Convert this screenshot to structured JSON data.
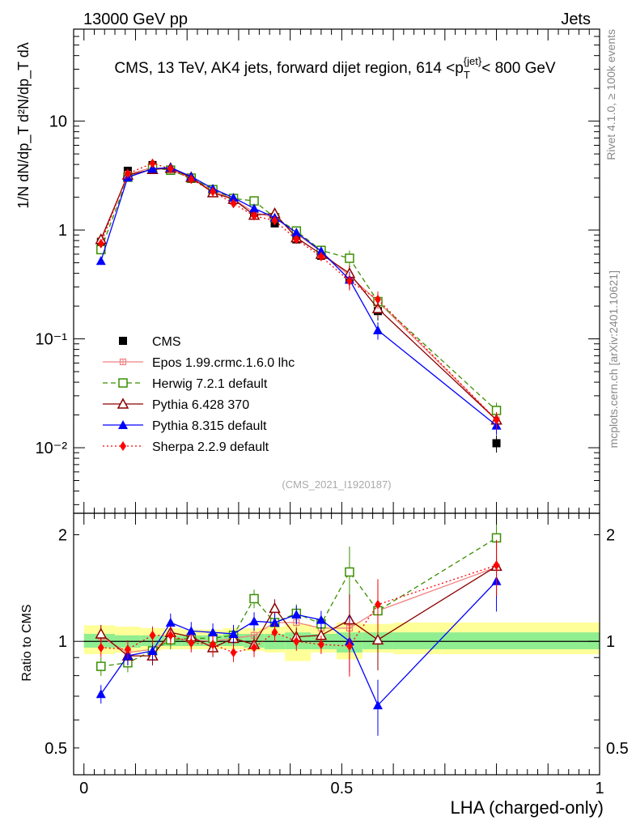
{
  "header": {
    "left": "13000 GeV pp",
    "right": "Jets"
  },
  "side_labels": {
    "rivet": "Rivet 4.1.0, ≥ 100k events",
    "mcplots": "mcplots.cern.ch [arXiv:2401.10621]"
  },
  "colors": {
    "cms": "#000000",
    "epos": "#f08080",
    "herwig": "#3a8f00",
    "pythia6": "#8b0000",
    "pythia8": "#0000ff",
    "sherpa": "#ff0000",
    "band_stat": "#90ee90",
    "band_total": "#ffff99"
  },
  "chart_data": [
    {
      "type": "line",
      "title": "CMS, 13 TeV, AK4 jets, forward dijet region, 614 <p_T^{jet}< 800 GeV",
      "ylabel": "1/N dN/dp_T d²N/dp_T dλ",
      "yscale": "log",
      "ylim": [
        0.0025,
        70
      ],
      "xlim": [
        -0.02,
        1.0
      ],
      "yticks": [
        {
          "value": 0.01,
          "label": "10⁻²"
        },
        {
          "value": 0.1,
          "label": "10⁻¹"
        },
        {
          "value": 1,
          "label": "1"
        },
        {
          "value": 10,
          "label": "10"
        }
      ],
      "watermark": "(CMS_2021_I1920187)",
      "legend_position": "left-bottom",
      "x": [
        0.033,
        0.085,
        0.133,
        0.168,
        0.208,
        0.25,
        0.29,
        0.33,
        0.37,
        0.412,
        0.46,
        0.515,
        0.57,
        0.8
      ],
      "series": [
        {
          "name": "CMS",
          "key": "cms",
          "marker": "square-filled",
          "line": "none",
          "values": [
            0.78,
            3.5,
            3.95,
            3.5,
            2.95,
            2.3,
            1.88,
            1.4,
            1.15,
            0.82,
            0.58,
            0.35,
            0.18,
            0.011
          ]
        },
        {
          "name": "Epos 1.99.crmc.1.6.0 lhc",
          "key": "epos",
          "marker": "plus-square",
          "line": "solid",
          "values": [
            0.8,
            3.25,
            3.75,
            3.55,
            3.0,
            2.3,
            1.92,
            1.45,
            1.3,
            0.93,
            0.63,
            0.38,
            0.22,
            0.018
          ]
        },
        {
          "name": "Herwig 7.2.1 default",
          "key": "herwig",
          "marker": "square-open",
          "line": "dashed",
          "values": [
            0.66,
            3.05,
            3.7,
            3.55,
            3.0,
            2.35,
            1.95,
            1.85,
            1.3,
            0.98,
            0.65,
            0.55,
            0.22,
            0.022
          ]
        },
        {
          "name": "Pythia 6.428 370",
          "key": "pythia6",
          "marker": "triangle-open",
          "line": "solid",
          "values": [
            0.82,
            3.2,
            3.6,
            3.7,
            3.05,
            2.2,
            1.92,
            1.37,
            1.42,
            0.85,
            0.6,
            0.4,
            0.19,
            0.018
          ]
        },
        {
          "name": "Pythia 8.315 default",
          "key": "pythia8",
          "marker": "triangle-filled",
          "line": "solid",
          "values": [
            0.52,
            3.05,
            3.65,
            3.75,
            3.1,
            2.4,
            1.98,
            1.58,
            1.3,
            0.95,
            0.64,
            0.35,
            0.12,
            0.016
          ]
        },
        {
          "name": "Sherpa 2.2.9 default",
          "key": "sherpa",
          "marker": "diamond-filled",
          "line": "dotted",
          "values": [
            0.75,
            3.3,
            4.1,
            3.65,
            2.93,
            2.25,
            1.75,
            1.35,
            1.22,
            0.82,
            0.57,
            0.34,
            0.23,
            0.018
          ]
        }
      ]
    },
    {
      "type": "line",
      "title": "",
      "xlabel": "LHA (charged-only)",
      "ylabel": "Ratio to CMS",
      "yscale": "log",
      "ylim": [
        0.42,
        2.3
      ],
      "xlim": [
        -0.02,
        1.0
      ],
      "yticks": [
        {
          "value": 0.5,
          "label": "0.5"
        },
        {
          "value": 1,
          "label": "1"
        },
        {
          "value": 2,
          "label": "2"
        }
      ],
      "xticks": [
        {
          "value": 0,
          "label": "0"
        },
        {
          "value": 0.5,
          "label": "0.5"
        },
        {
          "value": 1,
          "label": "1"
        }
      ],
      "x": [
        0.033,
        0.085,
        0.133,
        0.168,
        0.208,
        0.25,
        0.29,
        0.33,
        0.37,
        0.412,
        0.46,
        0.515,
        0.57,
        0.8
      ],
      "bands": {
        "edges": [
          0.0,
          0.06,
          0.11,
          0.15,
          0.19,
          0.23,
          0.27,
          0.31,
          0.35,
          0.39,
          0.44,
          0.49,
          0.54,
          0.6,
          1.0
        ],
        "total_lo": [
          0.92,
          0.93,
          0.94,
          0.95,
          0.95,
          0.95,
          0.95,
          0.94,
          0.93,
          0.88,
          0.93,
          0.89,
          0.93,
          0.92
        ],
        "total_hi": [
          1.11,
          1.1,
          1.09,
          1.09,
          1.08,
          1.08,
          1.09,
          1.09,
          1.1,
          1.12,
          1.1,
          1.13,
          1.12,
          1.13
        ],
        "stat_lo": [
          0.96,
          0.96,
          0.97,
          0.97,
          0.97,
          0.97,
          0.97,
          0.96,
          0.95,
          0.95,
          0.95,
          0.93,
          0.95,
          0.95
        ],
        "stat_hi": [
          1.05,
          1.04,
          1.04,
          1.04,
          1.04,
          1.04,
          1.05,
          1.05,
          1.05,
          1.06,
          1.05,
          1.06,
          1.06,
          1.06
        ]
      },
      "series": [
        {
          "name": "Epos 1.99.crmc.1.6.0 lhc",
          "key": "epos",
          "marker": "plus-square",
          "line": "solid",
          "values": [
            1.03,
            0.93,
            0.95,
            1.02,
            1.01,
            1.0,
            1.02,
            1.04,
            1.13,
            1.13,
            1.09,
            1.09,
            1.22,
            1.62
          ]
        },
        {
          "name": "Herwig 7.2.1 default",
          "key": "herwig",
          "marker": "square-open",
          "line": "dashed",
          "values": [
            0.85,
            0.87,
            0.94,
            1.01,
            1.02,
            1.02,
            1.04,
            1.32,
            1.13,
            1.2,
            1.12,
            1.57,
            1.22,
            1.96
          ]
        },
        {
          "name": "Pythia 6.428 370",
          "key": "pythia6",
          "marker": "triangle-open",
          "line": "solid",
          "values": [
            1.05,
            0.91,
            0.91,
            1.06,
            1.03,
            0.96,
            1.02,
            0.98,
            1.24,
            1.03,
            1.04,
            1.15,
            1.01,
            1.63
          ]
        },
        {
          "name": "Pythia 8.315 default",
          "key": "pythia8",
          "marker": "triangle-filled",
          "line": "solid",
          "values": [
            0.71,
            0.91,
            0.94,
            1.13,
            1.07,
            1.06,
            1.05,
            1.14,
            1.13,
            1.19,
            1.15,
            1.0,
            0.66,
            1.48
          ]
        },
        {
          "name": "Sherpa 2.2.9 default",
          "key": "sherpa",
          "marker": "diamond-filled",
          "line": "dotted",
          "values": [
            0.96,
            0.95,
            1.04,
            1.04,
            0.99,
            0.98,
            0.93,
            0.96,
            1.06,
            1.0,
            0.98,
            0.97,
            1.27,
            1.64
          ]
        }
      ]
    }
  ]
}
